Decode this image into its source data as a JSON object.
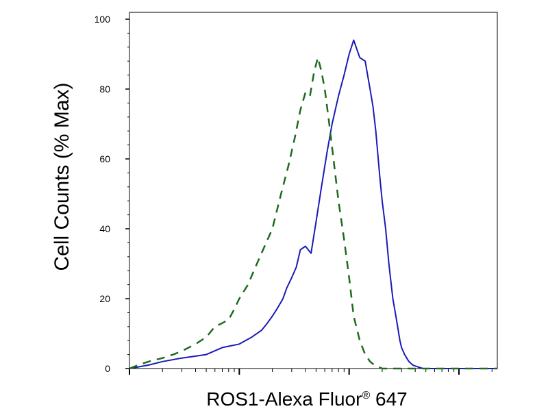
{
  "chart_data": {
    "type": "line",
    "xlabel": "ROS1-Alexa Fluor",
    "xlabel_mark": "®",
    "xlabel_suffix": " 647",
    "ylabel": "Cell Counts (% Max)",
    "ylim": [
      0,
      100
    ],
    "yticks": [
      "0",
      "20",
      "40",
      "60",
      "80",
      "100"
    ],
    "xscale": "log",
    "xlim": [
      1,
      1000
    ],
    "xticks_major": [
      1,
      10,
      100,
      1000
    ],
    "grid": false,
    "legend": "none",
    "series": [
      {
        "style": "solid",
        "color": "#1a1ab8",
        "x": [
          1,
          1.5,
          2,
          3,
          5,
          7,
          10,
          13,
          16,
          18,
          20,
          22,
          25,
          27,
          30,
          33,
          36,
          40,
          45,
          50,
          56,
          63,
          70,
          80,
          90,
          100,
          110,
          125,
          140,
          155,
          165,
          175,
          190,
          200,
          215,
          230,
          250,
          270,
          290,
          300,
          320,
          350,
          380,
          420,
          470,
          540,
          620,
          700,
          1000
        ],
        "y": [
          0,
          1,
          2,
          3,
          4,
          6,
          7,
          9,
          11,
          13,
          15,
          17,
          20,
          23,
          26,
          29,
          34,
          35,
          33,
          42,
          52,
          62,
          70,
          78,
          84,
          90,
          94,
          89,
          88,
          80,
          75,
          68,
          55,
          48,
          40,
          30,
          20,
          14,
          8,
          6,
          4,
          2,
          1,
          0.5,
          0,
          0,
          0,
          0,
          0
        ]
      },
      {
        "style": "dashed",
        "color": "#1d6b1d",
        "x": [
          1,
          1.2,
          1.5,
          2,
          2.5,
          3,
          4,
          5,
          6,
          7,
          8,
          9,
          10,
          12,
          14,
          17,
          20,
          24,
          28,
          32,
          36,
          40,
          44,
          48,
          52,
          56,
          60,
          66,
          72,
          80,
          90,
          100,
          110,
          125,
          140,
          155,
          170,
          185,
          200,
          220,
          240,
          300,
          1000
        ],
        "y": [
          0,
          1,
          2,
          3,
          4,
          5,
          7,
          9,
          12,
          13,
          14,
          17,
          20,
          24,
          29,
          35,
          40,
          50,
          58,
          66,
          74,
          79,
          78,
          85,
          89,
          85,
          80,
          70,
          60,
          48,
          37,
          26,
          15,
          8,
          4,
          2,
          1,
          0.5,
          0,
          0,
          0,
          0,
          0
        ]
      }
    ]
  }
}
